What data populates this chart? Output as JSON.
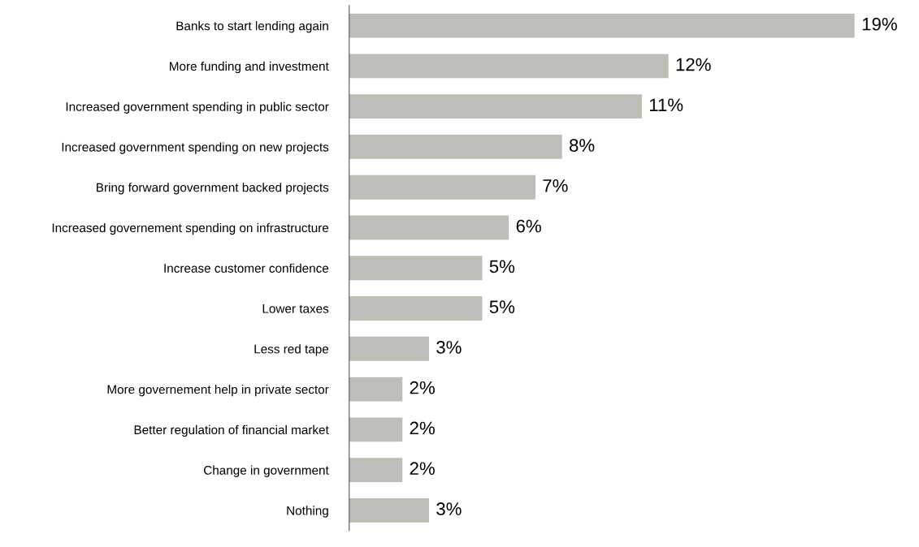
{
  "chart_data": {
    "type": "bar",
    "orientation": "horizontal",
    "categories": [
      "Banks to start lending again",
      "More funding and investment",
      "Increased government spending in public sector",
      "Increased government spending on new projects",
      "Bring forward government backed projects",
      "Increased governement spending on infrastructure",
      "Increase customer confidence",
      "Lower taxes",
      "Less red tape",
      "More governement help in private sector",
      "Better regulation of financial market",
      "Change in government",
      "Nothing"
    ],
    "values": [
      19,
      12,
      11,
      8,
      7,
      6,
      5,
      5,
      3,
      2,
      2,
      2,
      3
    ],
    "value_labels": [
      "19%",
      "12%",
      "11%",
      "8%",
      "7%",
      "6%",
      "5%",
      "5%",
      "3%",
      "2%",
      "2%",
      "2%",
      "3%"
    ],
    "color": "#bfbdb8",
    "grid": false,
    "legend": false,
    "tick_labels": "y"
  }
}
